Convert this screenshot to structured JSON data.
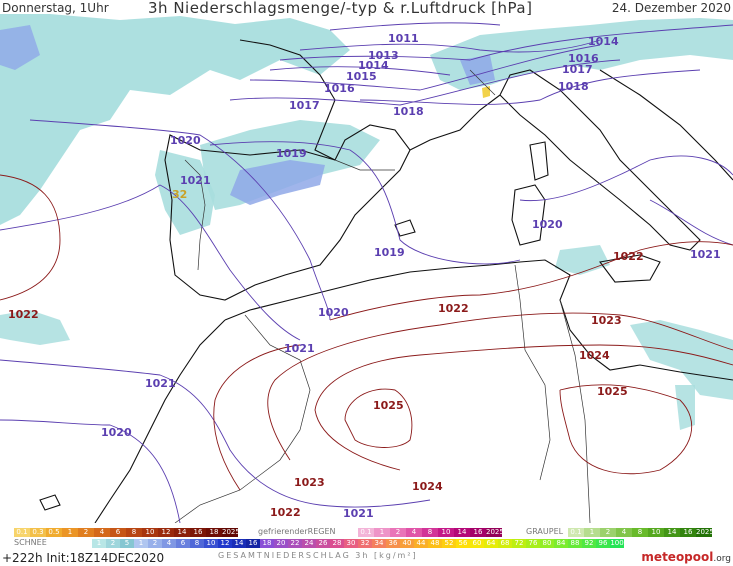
{
  "header": {
    "left": "Donnerstag, 1Uhr",
    "title": "3h Niederschlagsmenge/-typ & r.Luftdruck [hPa]",
    "date": "24. Dezember 2020"
  },
  "colors": {
    "isobar_low": "#5b3fb0",
    "isobar_high": "#8b1a1a",
    "coast": "#111111",
    "border": "#333333",
    "precip_light": "#a9dede",
    "precip_snow": "#8fa8e8",
    "graupel": "#f2d24a"
  },
  "isobar_labels": [
    {
      "text": "1011",
      "color": "#5b3fb0"
    },
    {
      "text": "1013",
      "color": "#5b3fb0"
    },
    {
      "text": "1014",
      "color": "#5b3fb0"
    },
    {
      "text": "1015",
      "color": "#5b3fb0"
    },
    {
      "text": "1016",
      "color": "#5b3fb0"
    },
    {
      "text": "1017",
      "color": "#5b3fb0"
    },
    {
      "text": "1018",
      "color": "#5b3fb0"
    },
    {
      "text": "1020",
      "color": "#5b3fb0"
    },
    {
      "text": "1019",
      "color": "#5b3fb0"
    },
    {
      "text": "1021",
      "color": "#5b3fb0"
    },
    {
      "text": "1014",
      "color": "#5b3fb0"
    },
    {
      "text": "1016",
      "color": "#5b3fb0"
    },
    {
      "text": "1017",
      "color": "#5b3fb0"
    },
    {
      "text": "1018",
      "color": "#5b3fb0"
    },
    {
      "text": "1020",
      "color": "#5b3fb0"
    },
    {
      "text": "1019",
      "color": "#5b3fb0"
    },
    {
      "text": "1021",
      "color": "#5b3fb0"
    },
    {
      "text": "1022",
      "color": "#8b1a1a"
    },
    {
      "text": "1020",
      "color": "#5b3fb0"
    },
    {
      "text": "1021",
      "color": "#5b3fb0"
    },
    {
      "text": "1022",
      "color": "#8b1a1a"
    },
    {
      "text": "1022",
      "color": "#8b1a1a"
    },
    {
      "text": "1023",
      "color": "#8b1a1a"
    },
    {
      "text": "1024",
      "color": "#8b1a1a"
    },
    {
      "text": "1021",
      "color": "#5b3fb0"
    },
    {
      "text": "1025",
      "color": "#8b1a1a"
    },
    {
      "text": "1025",
      "color": "#8b1a1a"
    },
    {
      "text": "1020",
      "color": "#5b3fb0"
    },
    {
      "text": "1023",
      "color": "#8b1a1a"
    },
    {
      "text": "1024",
      "color": "#8b1a1a"
    },
    {
      "text": "1022",
      "color": "#8b1a1a"
    },
    {
      "text": "1021",
      "color": "#5b3fb0"
    },
    {
      "text": "32",
      "color": "#c9a227"
    }
  ],
  "legend": {
    "schnee_label": "SCHNEE",
    "regen_label": "gefrierenderREGEN",
    "graupel_label": "GRAUPEL",
    "top_left_scale": [
      "0.1",
      "0.3",
      "0.5",
      "1",
      "2",
      "4",
      "6",
      "8",
      "10",
      "12",
      "14",
      "16",
      "18",
      "2025+"
    ],
    "regen_scale": [
      "0.1",
      "1",
      "2",
      "4",
      "8",
      "10",
      "14",
      "16",
      "2025+"
    ],
    "graupel_scale": [
      "0.1",
      "1",
      "2",
      "4",
      "8",
      "10",
      "14",
      "16",
      "2025+"
    ],
    "bottom_scale": [
      "1",
      "2",
      "5",
      "1",
      "2",
      "4",
      "6",
      "8",
      "10",
      "12",
      "14",
      "16",
      "18",
      "20",
      "22",
      "24",
      "26",
      "28",
      "30",
      "32",
      "34",
      "36",
      "40",
      "44",
      "48",
      "52",
      "56",
      "60",
      "64",
      "68",
      "72",
      "76",
      "80",
      "84",
      "88",
      "92",
      "96",
      "100"
    ],
    "gesamt_label": "GESAMTNIEDERSCHLAG 3h [kg/m²]"
  },
  "run_info": "+222h Init:18Z14DEC2020",
  "brand": {
    "name": "meteopool",
    "suffix": ".org"
  }
}
